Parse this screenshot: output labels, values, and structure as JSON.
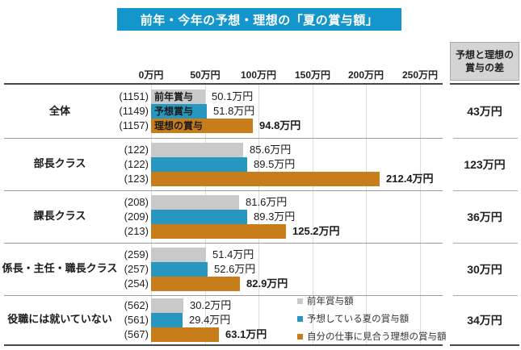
{
  "title": "前年・今年の予想・理想の「夏の賞与額」",
  "diff_header": "予想と理想の\n賞与の差",
  "axis_ticks": [
    "0万円",
    "50万円",
    "100万円",
    "150万円",
    "200万円",
    "250万円"
  ],
  "bar_inner_labels": [
    "前年賞与",
    "予想賞与",
    "理想の賞与"
  ],
  "legend": [
    {
      "label": "前年賞与額",
      "color": "#c9c9c9"
    },
    {
      "label": "予想している夏の賞与額",
      "color": "#2897c0"
    },
    {
      "label": "自分の仕事に見合う理想の賞与額",
      "color": "#c87d1b"
    }
  ],
  "colors": {
    "banner": "#1496cd",
    "bar_previous": "#c9c9c9",
    "bar_expected": "#2897c0",
    "bar_ideal": "#c87d1b"
  },
  "groups": [
    {
      "category": "全体",
      "n": [
        "(1151)",
        "(1149)",
        "(1157)"
      ],
      "values": [
        50.1,
        51.8,
        94.8
      ],
      "value_labels": [
        "50.1万円",
        "51.8万円",
        "94.8万円"
      ],
      "diff": "43万円"
    },
    {
      "category": "部長クラス",
      "n": [
        "(122)",
        "(122)",
        "(123)"
      ],
      "values": [
        85.6,
        89.5,
        212.4
      ],
      "value_labels": [
        "85.6万円",
        "89.5万円",
        "212.4万円"
      ],
      "diff": "123万円"
    },
    {
      "category": "課長クラス",
      "n": [
        "(208)",
        "(209)",
        "(213)"
      ],
      "values": [
        81.6,
        89.3,
        125.2
      ],
      "value_labels": [
        "81.6万円",
        "89.3万円",
        "125.2万円"
      ],
      "diff": "36万円"
    },
    {
      "category": "係長・主任・職長クラス",
      "n": [
        "(259)",
        "(257)",
        "(254)"
      ],
      "values": [
        51.4,
        52.6,
        82.9
      ],
      "value_labels": [
        "51.4万円",
        "52.6万円",
        "82.9万円"
      ],
      "diff": "30万円"
    },
    {
      "category": "役職には就いていない",
      "n": [
        "(562)",
        "(561)",
        "(567)"
      ],
      "values": [
        30.2,
        29.4,
        63.1
      ],
      "value_labels": [
        "30.2万円",
        "29.4万円",
        "63.1万円"
      ],
      "diff": "34万円"
    }
  ],
  "chart_data": {
    "type": "bar",
    "orientation": "horizontal",
    "title": "前年・今年の予想・理想の「夏の賞与額」",
    "unit": "万円",
    "categories": [
      "全体",
      "部長クラス",
      "課長クラス",
      "係長・主任・職長クラス",
      "役職には就いていない"
    ],
    "series": [
      {
        "name": "前年賞与額",
        "color": "#c9c9c9",
        "values": [
          50.1,
          85.6,
          81.6,
          51.4,
          30.2
        ],
        "sample_sizes": [
          1151,
          122,
          208,
          259,
          562
        ]
      },
      {
        "name": "予想している夏の賞与額",
        "color": "#2897c0",
        "values": [
          51.8,
          89.5,
          89.3,
          52.6,
          29.4
        ],
        "sample_sizes": [
          1149,
          122,
          209,
          257,
          561
        ]
      },
      {
        "name": "自分の仕事に見合う理想の賞与額",
        "color": "#c87d1b",
        "values": [
          94.8,
          212.4,
          125.2,
          82.9,
          63.1
        ],
        "sample_sizes": [
          1157,
          123,
          213,
          254,
          567
        ]
      }
    ],
    "diff_column": {
      "header": "予想と理想の賞与の差",
      "values": [
        "43万円",
        "123万円",
        "36万円",
        "30万円",
        "34万円"
      ]
    },
    "x_ticks": [
      "0万円",
      "50万円",
      "100万円",
      "150万円",
      "200万円",
      "250万円"
    ],
    "xlim": [
      0,
      268
    ],
    "grid": true,
    "legend_position": "bottom-right"
  }
}
